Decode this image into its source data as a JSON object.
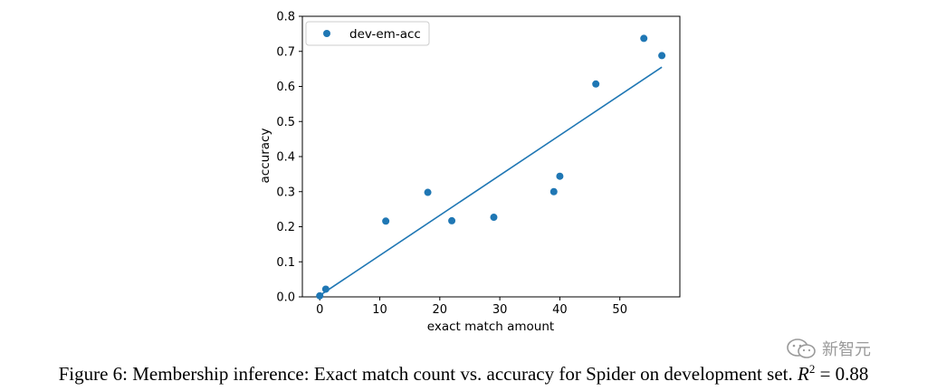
{
  "chart_data": {
    "type": "scatter",
    "xlabel": "exact match amount",
    "ylabel": "accuracy",
    "xlim": [
      -2.9,
      60.0
    ],
    "ylim": [
      0,
      0.8
    ],
    "xticks": [
      0,
      10,
      20,
      30,
      40,
      50
    ],
    "yticks": [
      0.0,
      0.1,
      0.2,
      0.3,
      0.4,
      0.5,
      0.6,
      0.7,
      0.8
    ],
    "xtick_labels": [
      "0",
      "10",
      "20",
      "30",
      "40",
      "50"
    ],
    "ytick_labels": [
      "0.0",
      "0.1",
      "0.2",
      "0.3",
      "0.4",
      "0.5",
      "0.6",
      "0.7",
      "0.8"
    ],
    "legend_position": "top-left",
    "grid": false,
    "series": [
      {
        "name": "dev-em-acc",
        "color": "#1f77b4",
        "x": [
          0,
          1,
          11,
          18,
          22,
          29,
          39,
          40,
          46,
          54,
          57
        ],
        "y": [
          0.003,
          0.022,
          0.216,
          0.298,
          0.217,
          0.227,
          0.3,
          0.344,
          0.607,
          0.737,
          0.688
        ]
      }
    ],
    "fit_line": {
      "color": "#1f77b4",
      "x": [
        0,
        57
      ],
      "y": [
        0.004,
        0.655
      ]
    }
  },
  "caption": {
    "text": "Figure 6: Membership inference: Exact match count vs. accuracy for Spider on development set. ",
    "r_symbol": "R",
    "r_power": "2",
    "r_value": " = 0.88"
  },
  "watermark": {
    "text": "新智元",
    "icon": "wechat-icon"
  }
}
